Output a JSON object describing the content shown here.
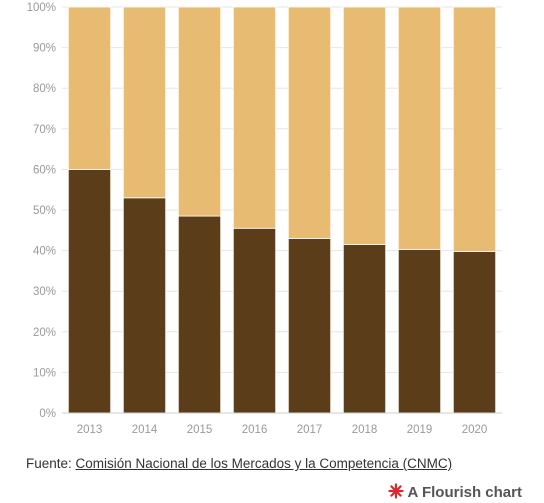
{
  "chart_data": {
    "type": "bar",
    "stacked": true,
    "normalized": true,
    "categories": [
      "2013",
      "2014",
      "2015",
      "2016",
      "2017",
      "2018",
      "2019",
      "2020"
    ],
    "series": [
      {
        "values": [
          60,
          53,
          48.5,
          45.5,
          43,
          41.5,
          40.3,
          39.8
        ],
        "color": "#5c3d1a"
      },
      {
        "values": [
          40,
          47,
          51.5,
          54.5,
          57,
          58.5,
          59.7,
          60.2
        ],
        "color": "#e8bb72"
      }
    ],
    "y_ticks": [
      "0%",
      "10%",
      "20%",
      "30%",
      "40%",
      "50%",
      "60%",
      "70%",
      "80%",
      "90%",
      "100%"
    ],
    "ylim": [
      0,
      100
    ],
    "grid": true
  },
  "source": {
    "prefix": "Fuente: ",
    "link_text": "Comisión Nacional de los Mercados y la Competencia (CNMC)"
  },
  "credit": {
    "label": "A Flourish chart",
    "icon": "flourish-logo-icon"
  }
}
